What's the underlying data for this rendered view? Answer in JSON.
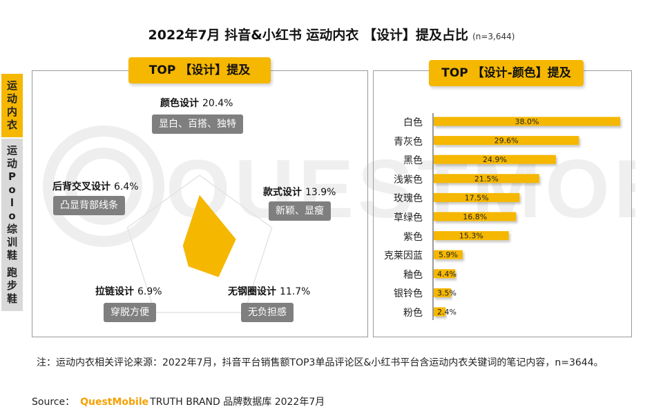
{
  "title": "2022年7月 抖音&小红书 运动内衣 【设计】提及占比",
  "sample": "(n=3,644)",
  "side_tabs": [
    {
      "label": "运动内衣",
      "active": true
    },
    {
      "label": "运动Polo综训鞋 跑步鞋",
      "active": false
    }
  ],
  "watermark": "QUESTMOBILE",
  "colors": {
    "accent": "#f5b700",
    "gray_box": "#7f7f7f",
    "bar": "#f5b700"
  },
  "chart_data": [
    {
      "type": "radar",
      "title": "TOP 【设计】提及",
      "series": [
        {
          "values": [
            20.4,
            13.9,
            11.7,
            6.9,
            6.4
          ]
        }
      ],
      "dimensions": [
        {
          "name": "颜色设计",
          "value": 20.4,
          "pct": "20.4%",
          "desc": "显白、百搭、独特"
        },
        {
          "name": "款式设计",
          "value": 13.9,
          "pct": "13.9%",
          "desc": "新颖、显瘦"
        },
        {
          "name": "无钢圈设计",
          "value": 11.7,
          "pct": "11.7%",
          "desc": "无负担感"
        },
        {
          "name": "拉链设计",
          "value": 6.9,
          "pct": "6.9%",
          "desc": "穿脱方便"
        },
        {
          "name": "后背交叉设计",
          "value": 6.4,
          "pct": "6.4%",
          "desc": "凸显背部线条"
        }
      ],
      "max": 40
    },
    {
      "type": "bar",
      "title": "TOP 【设计-颜色】提及",
      "orientation": "horizontal",
      "categories": [
        "白色",
        "青灰色",
        "黑色",
        "浅紫色",
        "玫瑰色",
        "草绿色",
        "紫色",
        "克莱因蓝",
        "釉色",
        "银铃色",
        "粉色"
      ],
      "values": [
        38.0,
        29.6,
        24.9,
        21.5,
        17.5,
        16.8,
        15.3,
        5.9,
        4.4,
        3.5,
        2.4
      ],
      "value_labels": [
        "38.0%",
        "29.6%",
        "24.9%",
        "21.5%",
        "17.5%",
        "16.8%",
        "15.3%",
        "5.9%",
        "4.4%",
        "3.5%",
        "2.4%"
      ],
      "xlim": [
        0,
        38
      ]
    }
  ],
  "note": "注：运动内衣相关评论来源：2022年7月，抖音平台销售额TOP3单品评论区&小红书平台含运动内衣关键词的笔记内容，n=3644。",
  "source": {
    "prefix": "Source：",
    "brand": "QuestMobile",
    "rest": "TRUTH BRAND 品牌数据库 2022年7月"
  }
}
